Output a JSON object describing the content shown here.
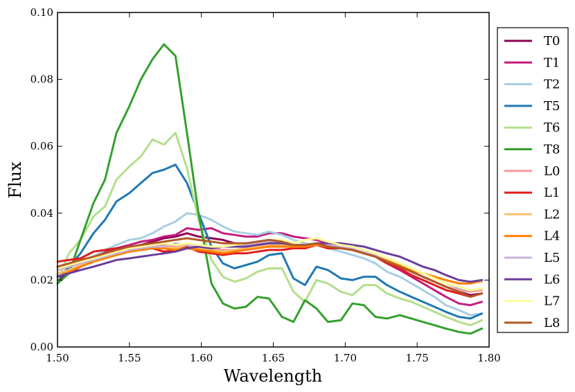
{
  "chart_data": {
    "type": "line",
    "title": "",
    "xlabel": "Wavelength",
    "ylabel": "Flux",
    "xlim": [
      1.5,
      1.8
    ],
    "ylim": [
      0.0,
      0.1
    ],
    "xticks": [
      "1.50",
      "1.55",
      "1.60",
      "1.65",
      "1.70",
      "1.75",
      "1.80"
    ],
    "yticks": [
      "0.00",
      "0.02",
      "0.04",
      "0.06",
      "0.08",
      "0.10"
    ],
    "grid": false,
    "legend_position": "right-outside",
    "x": [
      1.5,
      1.508,
      1.516,
      1.525,
      1.533,
      1.541,
      1.55,
      1.558,
      1.566,
      1.574,
      1.582,
      1.59,
      1.598,
      1.607,
      1.615,
      1.623,
      1.631,
      1.639,
      1.647,
      1.656,
      1.664,
      1.672,
      1.68,
      1.688,
      1.697,
      1.705,
      1.713,
      1.721,
      1.729,
      1.738,
      1.746,
      1.754,
      1.762,
      1.77,
      1.779,
      1.787,
      1.795
    ],
    "series": [
      {
        "name": "T0",
        "color": "#8e0152",
        "values": [
          0.02,
          0.022,
          0.024,
          0.026,
          0.027,
          0.0285,
          0.0295,
          0.0305,
          0.0315,
          0.0325,
          0.033,
          0.034,
          0.033,
          0.0325,
          0.032,
          0.031,
          0.0305,
          0.03,
          0.031,
          0.0305,
          0.03,
          0.0305,
          0.031,
          0.03,
          0.03,
          0.0295,
          0.0285,
          0.0275,
          0.026,
          0.0245,
          0.0225,
          0.021,
          0.0195,
          0.018,
          0.0165,
          0.0155,
          0.016
        ]
      },
      {
        "name": "T1",
        "color": "#c51b7d",
        "values": [
          0.024,
          0.0245,
          0.0255,
          0.027,
          0.0285,
          0.0295,
          0.0305,
          0.0315,
          0.032,
          0.033,
          0.0335,
          0.0355,
          0.035,
          0.0355,
          0.034,
          0.0335,
          0.033,
          0.033,
          0.034,
          0.034,
          0.033,
          0.0325,
          0.032,
          0.031,
          0.0305,
          0.0295,
          0.0285,
          0.027,
          0.025,
          0.023,
          0.021,
          0.019,
          0.017,
          0.015,
          0.013,
          0.0125,
          0.0135
        ]
      },
      {
        "name": "T2",
        "color": "#a6cee3",
        "values": [
          0.0215,
          0.0235,
          0.0255,
          0.027,
          0.029,
          0.0305,
          0.032,
          0.0325,
          0.034,
          0.036,
          0.0375,
          0.04,
          0.0395,
          0.038,
          0.036,
          0.0345,
          0.034,
          0.0335,
          0.0345,
          0.0335,
          0.032,
          0.031,
          0.0305,
          0.0295,
          0.0285,
          0.0275,
          0.0265,
          0.025,
          0.0225,
          0.021,
          0.019,
          0.017,
          0.015,
          0.0125,
          0.011,
          0.0095,
          0.01
        ]
      },
      {
        "name": "T5",
        "color": "#1f78b4",
        "values": [
          0.02,
          0.024,
          0.028,
          0.034,
          0.038,
          0.0435,
          0.046,
          0.049,
          0.052,
          0.053,
          0.0545,
          0.049,
          0.04,
          0.03,
          0.025,
          0.0235,
          0.0245,
          0.0255,
          0.0275,
          0.028,
          0.0205,
          0.0185,
          0.024,
          0.023,
          0.0205,
          0.02,
          0.021,
          0.021,
          0.0185,
          0.0165,
          0.015,
          0.0135,
          0.012,
          0.0105,
          0.009,
          0.0085,
          0.01
        ]
      },
      {
        "name": "T6",
        "color": "#b2df8a",
        "values": [
          0.02,
          0.028,
          0.032,
          0.039,
          0.042,
          0.05,
          0.054,
          0.057,
          0.062,
          0.0605,
          0.064,
          0.0535,
          0.038,
          0.026,
          0.021,
          0.0195,
          0.0205,
          0.0225,
          0.0235,
          0.0235,
          0.0165,
          0.0135,
          0.02,
          0.019,
          0.0165,
          0.0155,
          0.0185,
          0.0185,
          0.016,
          0.0145,
          0.0135,
          0.012,
          0.0105,
          0.009,
          0.0075,
          0.0065,
          0.008
        ]
      },
      {
        "name": "T8",
        "color": "#33a02c",
        "values": [
          0.019,
          0.022,
          0.032,
          0.043,
          0.05,
          0.064,
          0.072,
          0.08,
          0.086,
          0.0905,
          0.087,
          0.064,
          0.04,
          0.019,
          0.013,
          0.0115,
          0.012,
          0.015,
          0.0145,
          0.009,
          0.0075,
          0.014,
          0.0115,
          0.0075,
          0.008,
          0.013,
          0.0125,
          0.009,
          0.0085,
          0.0095,
          0.0085,
          0.0075,
          0.0065,
          0.0055,
          0.0045,
          0.004,
          0.0055
        ]
      },
      {
        "name": "L0",
        "color": "#fb9a99",
        "values": [
          0.023,
          0.0245,
          0.0255,
          0.0265,
          0.0275,
          0.0285,
          0.029,
          0.0295,
          0.03,
          0.0305,
          0.03,
          0.031,
          0.03,
          0.0295,
          0.029,
          0.029,
          0.0295,
          0.0295,
          0.03,
          0.03,
          0.03,
          0.0305,
          0.031,
          0.03,
          0.0295,
          0.029,
          0.028,
          0.027,
          0.0255,
          0.024,
          0.0225,
          0.021,
          0.0195,
          0.018,
          0.017,
          0.0165,
          0.017
        ]
      },
      {
        "name": "L1",
        "color": "#e31a1c",
        "values": [
          0.0255,
          0.026,
          0.0265,
          0.0285,
          0.029,
          0.0295,
          0.0295,
          0.03,
          0.0295,
          0.0285,
          0.029,
          0.03,
          0.0285,
          0.028,
          0.0275,
          0.028,
          0.028,
          0.0285,
          0.029,
          0.029,
          0.0295,
          0.0295,
          0.0305,
          0.0295,
          0.0295,
          0.029,
          0.028,
          0.027,
          0.025,
          0.0235,
          0.0215,
          0.02,
          0.0185,
          0.017,
          0.016,
          0.015,
          0.016
        ]
      },
      {
        "name": "L2",
        "color": "#fdbf6f",
        "values": [
          0.022,
          0.023,
          0.0245,
          0.0255,
          0.0265,
          0.0275,
          0.0285,
          0.029,
          0.0295,
          0.03,
          0.0295,
          0.0305,
          0.0295,
          0.029,
          0.0285,
          0.029,
          0.0295,
          0.03,
          0.0305,
          0.0305,
          0.03,
          0.0305,
          0.031,
          0.0305,
          0.03,
          0.0295,
          0.0285,
          0.0275,
          0.0265,
          0.025,
          0.0235,
          0.022,
          0.021,
          0.02,
          0.019,
          0.019,
          0.0195
        ]
      },
      {
        "name": "L4",
        "color": "#ff7f00",
        "values": [
          0.021,
          0.0225,
          0.024,
          0.0255,
          0.0265,
          0.0275,
          0.0285,
          0.029,
          0.0295,
          0.0295,
          0.029,
          0.0295,
          0.029,
          0.0285,
          0.028,
          0.0285,
          0.029,
          0.0295,
          0.03,
          0.03,
          0.03,
          0.03,
          0.0305,
          0.03,
          0.0295,
          0.029,
          0.028,
          0.027,
          0.026,
          0.0245,
          0.023,
          0.022,
          0.021,
          0.02,
          0.019,
          0.019,
          0.02
        ]
      },
      {
        "name": "L5",
        "color": "#cab2d6",
        "values": [
          0.023,
          0.024,
          0.025,
          0.026,
          0.027,
          0.028,
          0.029,
          0.0295,
          0.03,
          0.03,
          0.031,
          0.0305,
          0.03,
          0.0295,
          0.03,
          0.0305,
          0.0305,
          0.031,
          0.0315,
          0.0315,
          0.0305,
          0.0305,
          0.031,
          0.0305,
          0.03,
          0.0295,
          0.0285,
          0.0275,
          0.0265,
          0.025,
          0.0235,
          0.022,
          0.0205,
          0.019,
          0.0175,
          0.017,
          0.0175
        ]
      },
      {
        "name": "L6",
        "color": "#6a3d9a",
        "values": [
          0.021,
          0.022,
          0.023,
          0.024,
          0.025,
          0.026,
          0.0265,
          0.027,
          0.0275,
          0.028,
          0.0285,
          0.0295,
          0.03,
          0.0295,
          0.03,
          0.03,
          0.03,
          0.0305,
          0.031,
          0.031,
          0.0305,
          0.0305,
          0.031,
          0.031,
          0.031,
          0.0305,
          0.03,
          0.029,
          0.028,
          0.027,
          0.0255,
          0.024,
          0.023,
          0.0215,
          0.02,
          0.0195,
          0.02
        ]
      },
      {
        "name": "L7",
        "color": "#ffff99",
        "values": [
          0.0235,
          0.0245,
          0.0255,
          0.0265,
          0.0275,
          0.0285,
          0.0295,
          0.03,
          0.0305,
          0.031,
          0.0305,
          0.031,
          0.0305,
          0.03,
          0.03,
          0.0305,
          0.031,
          0.0315,
          0.032,
          0.032,
          0.031,
          0.032,
          0.0325,
          0.0315,
          0.0305,
          0.03,
          0.029,
          0.028,
          0.0265,
          0.025,
          0.0235,
          0.022,
          0.0205,
          0.019,
          0.018,
          0.017,
          0.0175
        ]
      },
      {
        "name": "L8",
        "color": "#b15928",
        "values": [
          0.024,
          0.025,
          0.026,
          0.027,
          0.028,
          0.029,
          0.03,
          0.0305,
          0.031,
          0.0315,
          0.032,
          0.0325,
          0.032,
          0.0315,
          0.031,
          0.031,
          0.031,
          0.0315,
          0.032,
          0.0315,
          0.0305,
          0.0305,
          0.031,
          0.03,
          0.0295,
          0.029,
          0.028,
          0.027,
          0.0255,
          0.024,
          0.0225,
          0.021,
          0.0195,
          0.018,
          0.0165,
          0.015,
          0.016
        ]
      }
    ]
  }
}
